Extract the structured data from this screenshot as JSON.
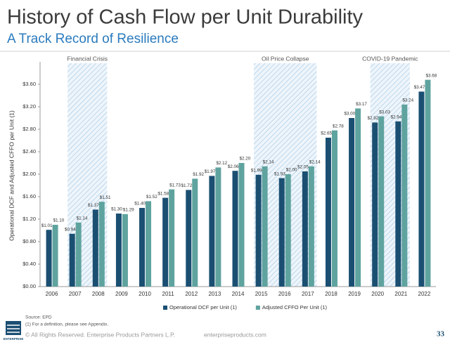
{
  "chart_data": {
    "type": "bar",
    "title": "History of Cash Flow per Unit Durability",
    "subtitle": "A Track Record of Resilience",
    "y_label": "Operational DCF and Adjusted CFFO per Unit (1)",
    "categories": [
      "2006",
      "2007",
      "2008",
      "2009",
      "2010",
      "2011",
      "2012",
      "2013",
      "2014",
      "2015",
      "2016",
      "2017",
      "2018",
      "2019",
      "2020",
      "2021",
      "2022"
    ],
    "series": [
      {
        "name": "Operational DCF per Unit (1)",
        "color": "#1b4f72",
        "values": [
          1.01,
          0.94,
          1.37,
          1.3,
          1.4,
          1.58,
          1.72,
          1.97,
          2.06,
          1.99,
          1.93,
          2.05,
          2.65,
          3.0,
          2.92,
          2.94,
          3.47
        ],
        "value_labels": [
          "$1.01",
          "$0.94",
          "$1.37",
          "$1.30",
          "$1.40",
          "$1.58",
          "$1.72",
          "$1.97",
          "$2.06",
          "$1.99",
          "$1.93",
          "$2.05",
          "$2.65",
          "$3.00",
          "$2.92",
          "$2.94",
          "$3.47"
        ]
      },
      {
        "name": "Adjusted CFFO Per Unit (1)",
        "color": "#5fa39f",
        "values": [
          1.1,
          1.14,
          1.51,
          1.29,
          1.52,
          1.73,
          1.92,
          2.12,
          2.2,
          2.14,
          2.0,
          2.14,
          2.78,
          3.17,
          3.03,
          3.24,
          3.68
        ],
        "value_labels": [
          "$1.10",
          "$1.14",
          "$1.51",
          "$1.29",
          "$1.52",
          "$1.73",
          "$1.92",
          "$2.12",
          "$2.20",
          "$2.14",
          "$2.00",
          "$2.14",
          "$2.78",
          "$3.17",
          "$3.03",
          "$3.24",
          "$3.68"
        ]
      }
    ],
    "ylim": [
      0,
      4.0
    ],
    "yticks": [
      {
        "value": 0,
        "label": "$0.00"
      },
      {
        "value": 0.4,
        "label": "$0.40"
      },
      {
        "value": 0.8,
        "label": "$0.80"
      },
      {
        "value": 1.2,
        "label": "$1.20"
      },
      {
        "value": 1.6,
        "label": "$1.60"
      },
      {
        "value": 2.0,
        "label": "$2.00"
      },
      {
        "value": 2.4,
        "label": "$2.40"
      },
      {
        "value": 2.8,
        "label": "$2.80"
      },
      {
        "value": 3.2,
        "label": "$3.20"
      },
      {
        "value": 3.6,
        "label": "$3.60"
      }
    ],
    "grid": false,
    "legend": "bottom",
    "shaded_periods": [
      {
        "label": "Financial Crisis",
        "start": "2007",
        "end": "2008"
      },
      {
        "label": "Oil Price Collapse",
        "start": "2015",
        "end": "2017"
      },
      {
        "label": "COVID-19 Pandemic",
        "start": "2020",
        "end": "2021"
      }
    ]
  },
  "footer": {
    "source": "Source: EPD",
    "note": "(1)  For a definition, please see Appendix.",
    "copyright": "© All Rights Reserved. Enterprise Products Partners L.P.",
    "website": "enterpriseproducts.com",
    "page": "33",
    "logo": "ENTERPRISE"
  }
}
